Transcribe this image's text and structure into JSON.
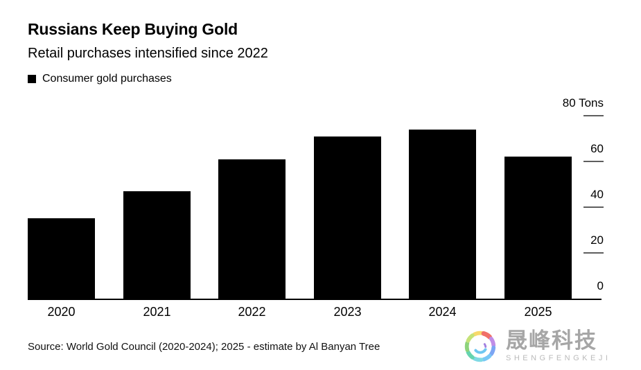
{
  "header": {
    "title": "Russians Keep Buying Gold",
    "subtitle": "Retail purchases intensified since 2022"
  },
  "legend": {
    "label": "Consumer gold purchases",
    "swatch_color": "#000000"
  },
  "chart_data": {
    "type": "bar",
    "title": "Russians Keep Buying Gold",
    "subtitle": "Retail purchases intensified since 2022",
    "series_name": "Consumer gold purchases",
    "categories": [
      "2020",
      "2021",
      "2022",
      "2023",
      "2024",
      "2025"
    ],
    "values": [
      35,
      47,
      61,
      71,
      74,
      62
    ],
    "unit": "Tons",
    "ylabel": "",
    "xlabel": "",
    "ylim": [
      0,
      80
    ],
    "yticks": [
      0,
      20,
      40,
      60,
      80
    ],
    "ytick_labels": [
      "0",
      "20",
      "40",
      "60",
      "80 Tons"
    ],
    "axis_side": "right",
    "grid": false,
    "bar_color": "#000000",
    "note": "2025 value is an estimate"
  },
  "footer": {
    "source": "Source: World Gold Council (2020-2024); 2025 - estimate by Al Banyan Tree"
  },
  "watermark": {
    "cjk_name": "晟峰科技",
    "latin_name": "SHENGFENGKEJI",
    "cjk_color": "#9a9a9a",
    "latin_color": "#b1b1b1"
  },
  "colors": {
    "bar": "#000000",
    "axis_line": "#000000",
    "tick_dash": "#5e5e5e",
    "background": "#ffffff"
  }
}
